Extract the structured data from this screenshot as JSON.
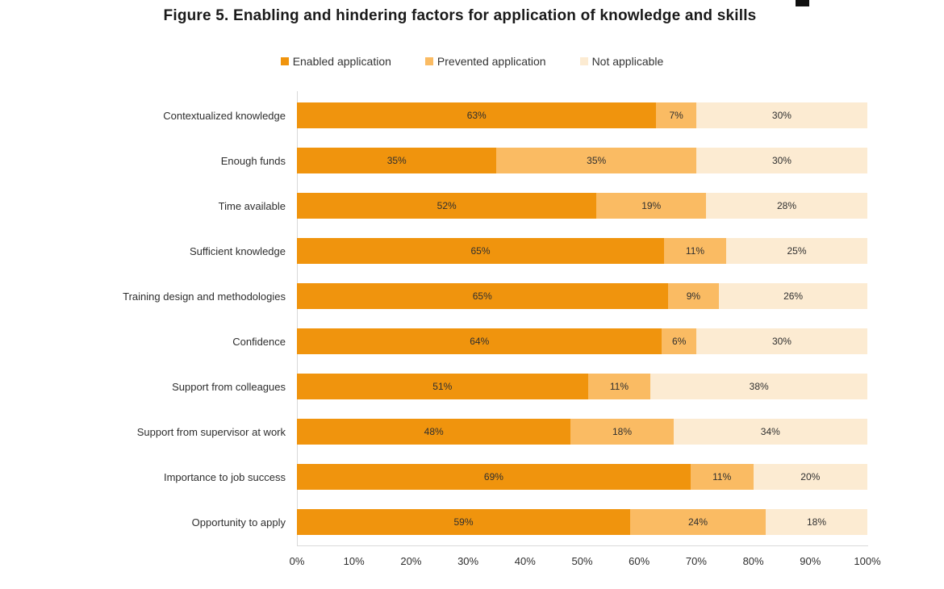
{
  "figure": {
    "title": "Figure 5. Enabling and hindering factors for application of knowledge and skills"
  },
  "chart_data": {
    "type": "bar",
    "variant": "horizontal-stacked",
    "title": "Figure 5. Enabling and hindering factors for application of knowledge and skills",
    "categories": [
      "Contextualized knowledge",
      "Enough funds",
      "Time available",
      "Sufficient knowledge",
      "Training design and methodologies",
      "Confidence",
      "Support from colleagues",
      "Support from supervisor at work",
      "Importance to job success",
      "Opportunity to apply"
    ],
    "series": [
      {
        "name": "Enabled application",
        "color": "#F0940D",
        "values": [
          63,
          35,
          52,
          65,
          65,
          64,
          51,
          48,
          69,
          59
        ]
      },
      {
        "name": "Prevented application",
        "color": "#FABB63",
        "values": [
          7,
          35,
          19,
          11,
          9,
          6,
          11,
          18,
          11,
          24
        ]
      },
      {
        "name": "Not applicable",
        "color": "#FCEBD2",
        "values": [
          30,
          30,
          28,
          25,
          26,
          30,
          38,
          34,
          20,
          18
        ]
      }
    ],
    "value_suffix": "%",
    "x_ticks": [
      "0%",
      "10%",
      "20%",
      "30%",
      "40%",
      "50%",
      "60%",
      "70%",
      "80%",
      "90%",
      "100%"
    ],
    "xlim": [
      0,
      100
    ],
    "legend_position": "top",
    "grid": false,
    "text_color": "#2e2e2e",
    "axis_line_color": "#d9d9d9"
  }
}
